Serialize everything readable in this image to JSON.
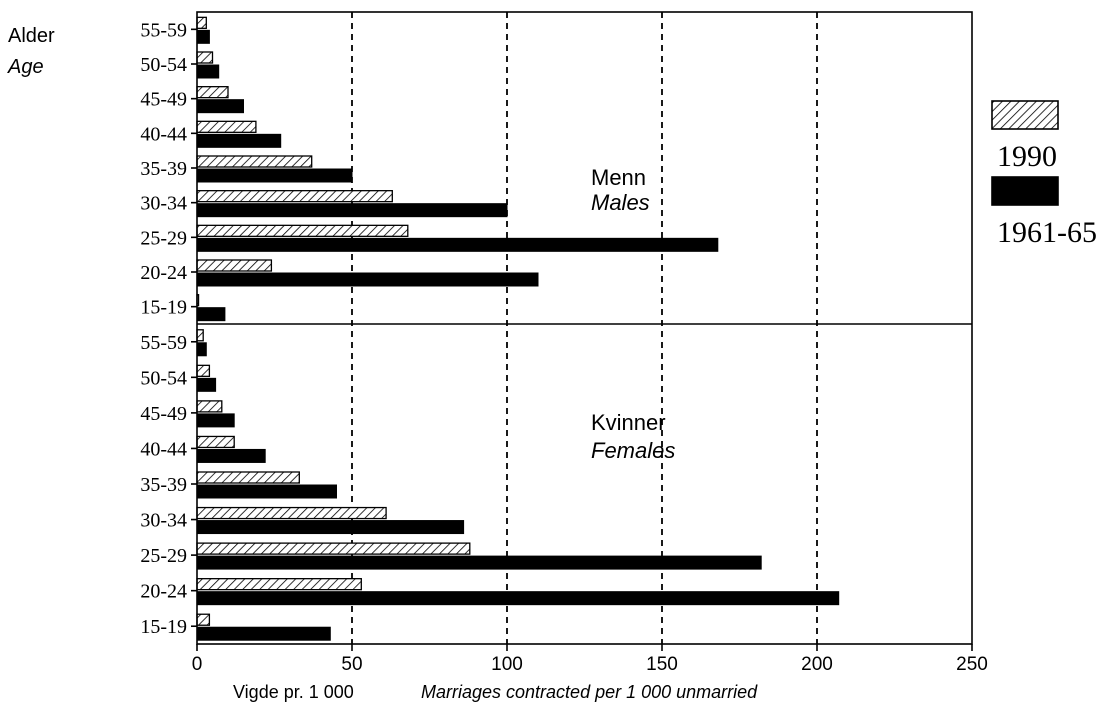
{
  "header": {
    "age_label_no": "Alder",
    "age_label_en": "Age"
  },
  "x_axis": {
    "label_no": "Vigde pr. 1 000",
    "label_en": "Marriages contracted per 1 000 unmarried"
  },
  "legend": {
    "items": [
      {
        "label": "1990",
        "pattern": "hatched"
      },
      {
        "label": "1961-65",
        "pattern": "solid"
      }
    ]
  },
  "colors": {
    "ink": "#000000",
    "background": "#ffffff"
  },
  "chart_data": [
    {
      "type": "bar",
      "orientation": "horizontal",
      "panel_label": "Menn",
      "panel_label_en": "Males",
      "categories": [
        "55-59",
        "50-54",
        "45-49",
        "40-44",
        "35-39",
        "30-34",
        "25-29",
        "20-24",
        "15-19"
      ],
      "series": [
        {
          "name": "1990",
          "values": [
            3,
            5,
            10,
            19,
            37,
            63,
            68,
            24,
            0.5
          ]
        },
        {
          "name": "1961-65",
          "values": [
            4,
            7,
            15,
            27,
            50,
            100,
            168,
            110,
            9
          ]
        }
      ],
      "xlim": [
        0,
        250
      ],
      "xticks": [
        0,
        50,
        100,
        150,
        200,
        250
      ],
      "grid": "vertical dashed at 50, 100, 150, 200"
    },
    {
      "type": "bar",
      "orientation": "horizontal",
      "panel_label": "Kvinner",
      "panel_label_en": "Females",
      "categories": [
        "55-59",
        "50-54",
        "45-49",
        "40-44",
        "35-39",
        "30-34",
        "25-29",
        "20-24",
        "15-19"
      ],
      "series": [
        {
          "name": "1990",
          "values": [
            2,
            4,
            8,
            12,
            33,
            61,
            88,
            53,
            4
          ]
        },
        {
          "name": "1961-65",
          "values": [
            3,
            6,
            12,
            22,
            45,
            86,
            182,
            207,
            43
          ]
        }
      ],
      "xlim": [
        0,
        250
      ],
      "xticks": [
        0,
        50,
        100,
        150,
        200,
        250
      ],
      "grid": "vertical dashed at 50, 100, 150, 200"
    }
  ]
}
